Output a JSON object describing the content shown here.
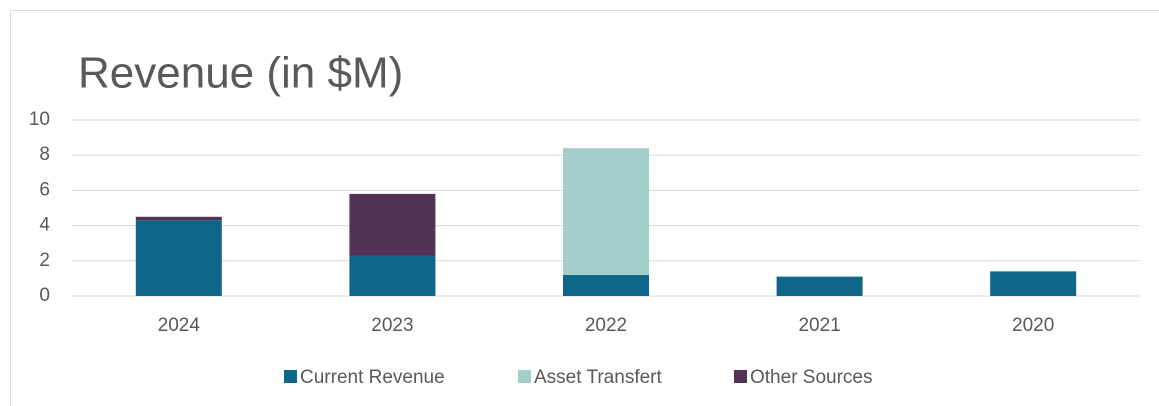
{
  "chart_data": {
    "type": "stacked_bar",
    "title": "Revenue (in $M)",
    "categories": [
      "2024",
      "2023",
      "2022",
      "2021",
      "2020"
    ],
    "series": [
      {
        "name": "Current Revenue",
        "color": "#0e6688",
        "values": [
          4.3,
          2.3,
          1.2,
          1.1,
          1.4
        ]
      },
      {
        "name": "Asset Transfert",
        "color": "#a3cecb",
        "values": [
          0,
          0,
          7.2,
          0,
          0
        ]
      },
      {
        "name": "Other Sources",
        "color": "#523356",
        "values": [
          0.2,
          3.5,
          0,
          0,
          0
        ]
      }
    ],
    "ylim": [
      0,
      10
    ],
    "yticks": [
      0,
      2,
      4,
      6,
      8,
      10
    ],
    "grid": true,
    "legend": "bottom"
  }
}
